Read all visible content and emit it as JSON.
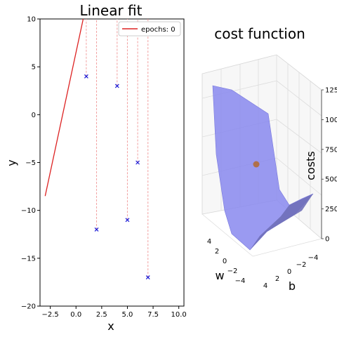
{
  "chart_data": [
    {
      "type": "scatter",
      "title": "Linear fit",
      "xlabel": "x",
      "ylabel": "y",
      "xlim": [
        -3.5,
        10.5
      ],
      "ylim": [
        -20,
        10
      ],
      "xticks": [
        -2.5,
        0.0,
        2.5,
        5.0,
        7.5,
        10.0
      ],
      "xtick_labels": [
        "−2.5",
        "0.0",
        "2.5",
        "5.0",
        "7.5",
        "10.0"
      ],
      "yticks": [
        -20,
        -15,
        -10,
        -5,
        0,
        5,
        10
      ],
      "ytick_labels": [
        "−20",
        "−15",
        "−10",
        "−5",
        "0",
        "5",
        "10"
      ],
      "points": [
        {
          "x": 1,
          "y": 4
        },
        {
          "x": 2,
          "y": -12
        },
        {
          "x": 4,
          "y": 3
        },
        {
          "x": 5,
          "y": -11
        },
        {
          "x": 6,
          "y": -5
        },
        {
          "x": 7,
          "y": -17
        }
      ],
      "fit_line": {
        "slope": 5,
        "intercept": 6.5,
        "x_start": -3,
        "color": "#dd2222"
      },
      "residual_color": "#f2a0a0",
      "point_color": "#1a1ad6",
      "legend": {
        "label": "epochs: 0",
        "position": "top-right"
      }
    },
    {
      "type": "surface",
      "title": "cost function",
      "xlabel": "w",
      "ylabel": "b",
      "zlabel": "costs",
      "w_ticks": [
        "4",
        "2",
        "0",
        "−2",
        "−4"
      ],
      "b_ticks": [
        "4",
        "2",
        "0",
        "−2",
        "−4"
      ],
      "z_ticks": [
        "0",
        "250",
        "500",
        "750",
        "1000",
        "1250"
      ],
      "zlim": [
        0,
        1300
      ],
      "surface_color": "#8888ee",
      "current_point_color": "#b0704a"
    }
  ]
}
